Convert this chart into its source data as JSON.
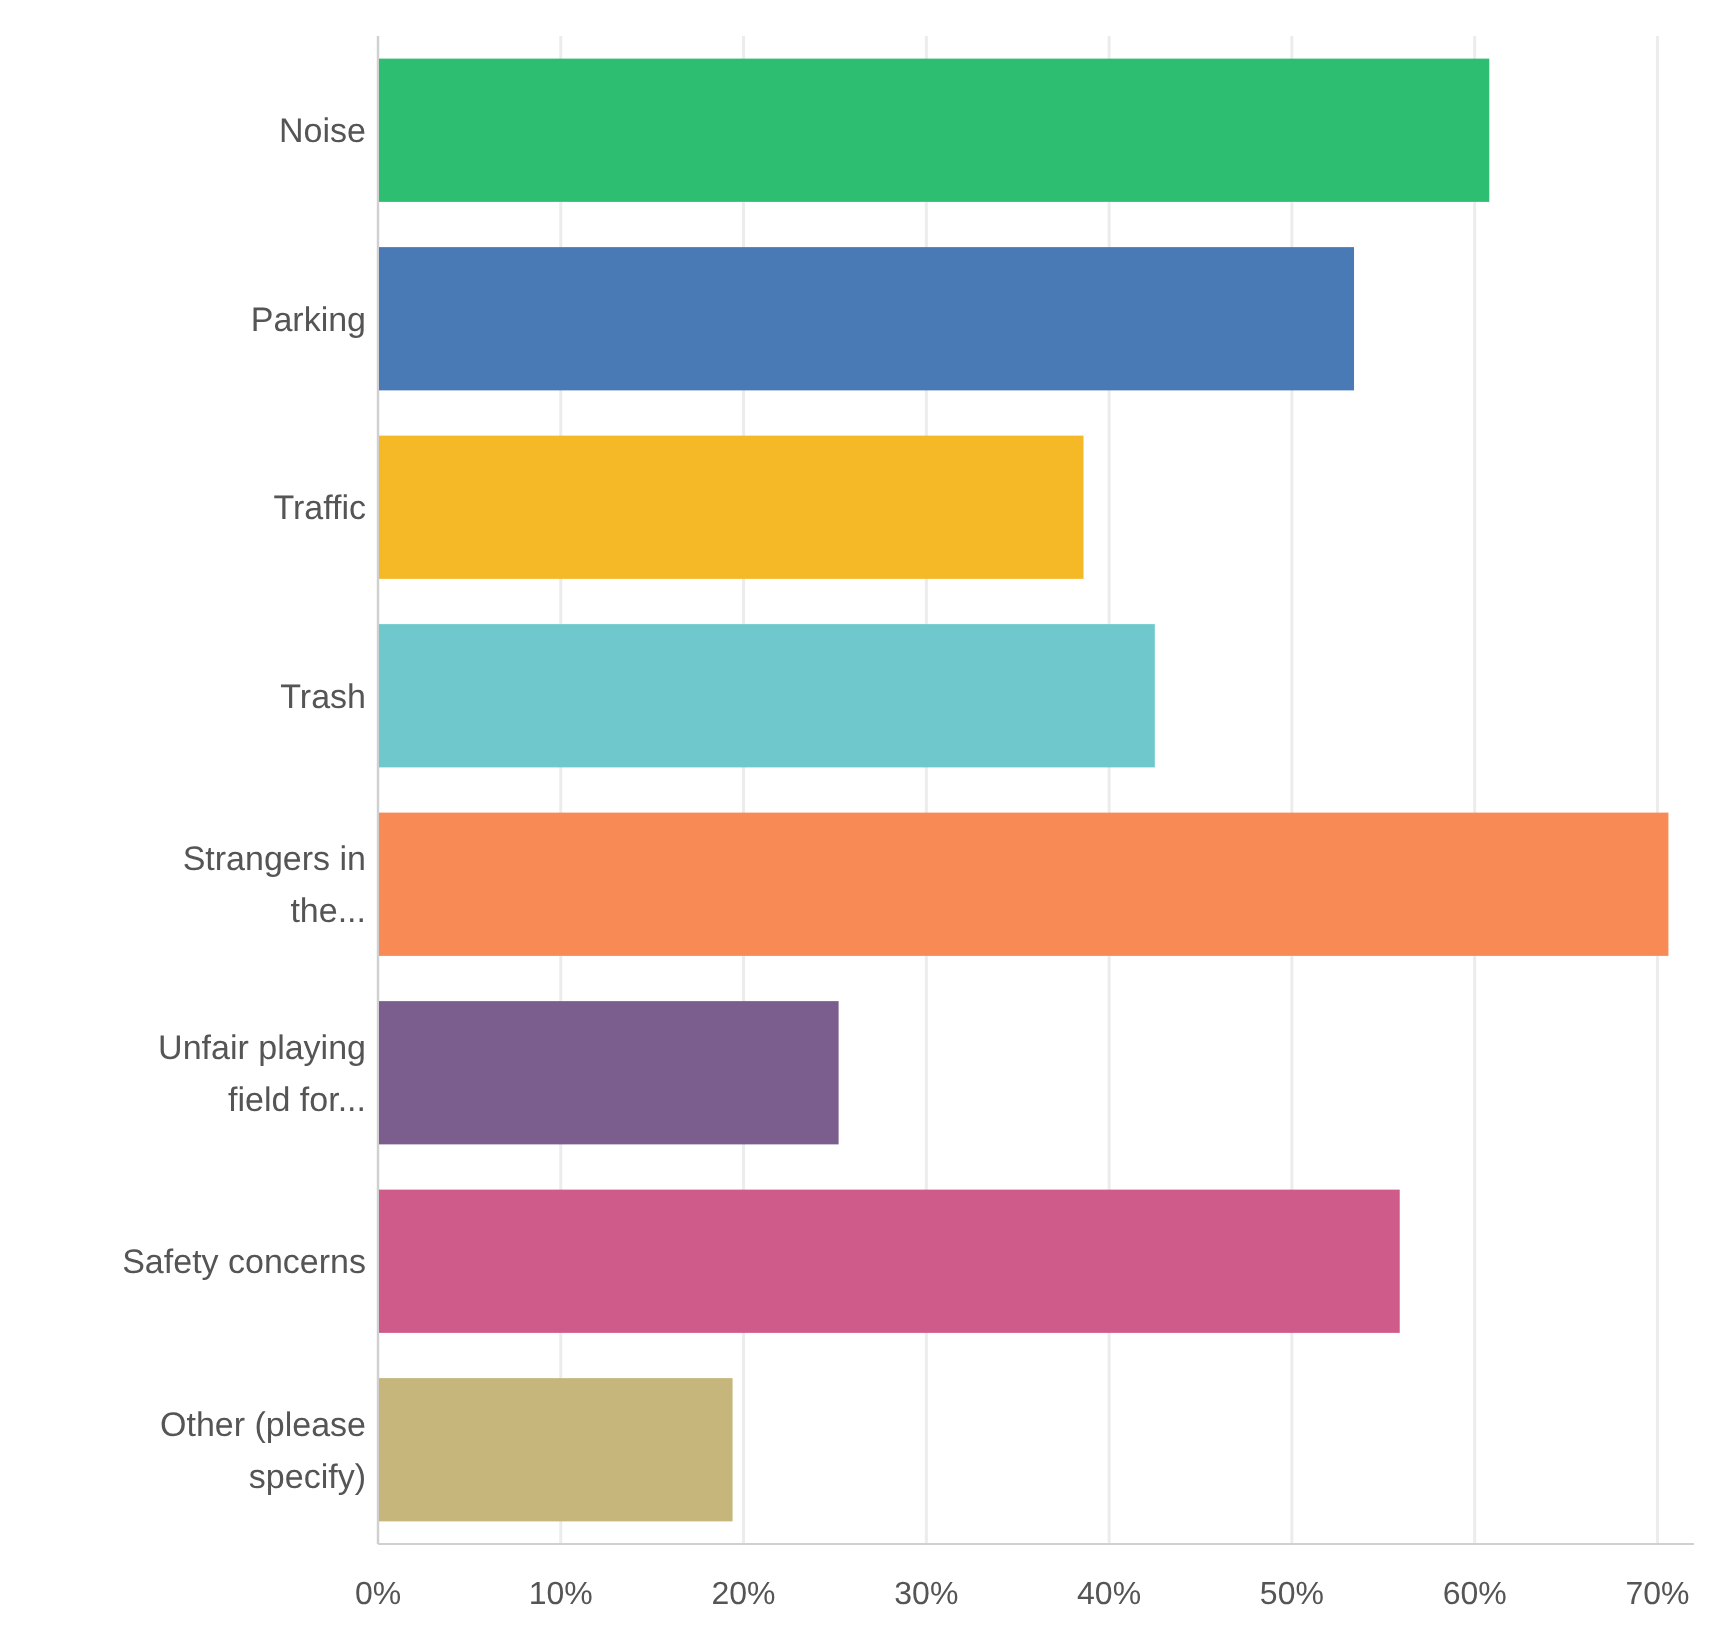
{
  "chart_data": {
    "type": "bar",
    "orientation": "horizontal",
    "categories": [
      "Noise",
      "Parking",
      "Traffic",
      "Trash",
      "Strangers in the...",
      "Unfair playing field for...",
      "Safety concerns",
      "Other (please specify)"
    ],
    "values": [
      60.8,
      53.4,
      38.6,
      42.5,
      70.6,
      25.2,
      55.9,
      19.4
    ],
    "colors": [
      "#2dbe71",
      "#4a7ab5",
      "#f5b928",
      "#6ec8cc",
      "#f78a55",
      "#7b5e8e",
      "#cf5b8b",
      "#c6b67b"
    ],
    "xlim": [
      0,
      72
    ],
    "xticks": [
      {
        "value": 0,
        "label": "0%"
      },
      {
        "value": 10,
        "label": "10%"
      },
      {
        "value": 20,
        "label": "20%"
      },
      {
        "value": 30,
        "label": "30%"
      },
      {
        "value": 40,
        "label": "40%"
      },
      {
        "value": 50,
        "label": "50%"
      },
      {
        "value": 60,
        "label": "60%"
      },
      {
        "value": 70,
        "label": "70%"
      }
    ],
    "grid": "x"
  }
}
